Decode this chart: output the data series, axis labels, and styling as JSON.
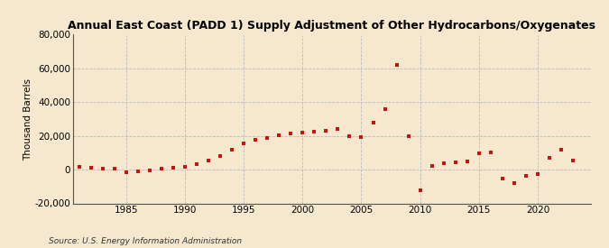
{
  "title": "Annual East Coast (PADD 1) Supply Adjustment of Other Hydrocarbons/Oxygenates",
  "ylabel": "Thousand Barrels",
  "source": "Source: U.S. Energy Information Administration",
  "background_color": "#f5e8ce",
  "marker_color": "#cc1111",
  "years": [
    1981,
    1982,
    1983,
    1984,
    1985,
    1986,
    1987,
    1988,
    1989,
    1990,
    1991,
    1992,
    1993,
    1994,
    1995,
    1996,
    1997,
    1998,
    1999,
    2000,
    2001,
    2002,
    2003,
    2004,
    2005,
    2006,
    2007,
    2008,
    2009,
    2010,
    2011,
    2012,
    2013,
    2014,
    2015,
    2016,
    2017,
    2018,
    2019,
    2020,
    2021,
    2022,
    2023
  ],
  "values": [
    1500,
    1200,
    800,
    500,
    -1800,
    -1200,
    -600,
    400,
    900,
    1800,
    3200,
    5500,
    8000,
    12000,
    15500,
    17500,
    19000,
    20500,
    21500,
    22000,
    22500,
    23000,
    24000,
    20000,
    19500,
    28000,
    36000,
    62000,
    20000,
    -12000,
    2000,
    4000,
    4500,
    5000,
    9500,
    10000,
    -5500,
    -8000,
    -3500,
    -2500,
    7000,
    12000,
    5500
  ],
  "ylim": [
    -20000,
    80000
  ],
  "yticks": [
    -20000,
    0,
    20000,
    40000,
    60000,
    80000
  ],
  "xticks": [
    1985,
    1990,
    1995,
    2000,
    2005,
    2010,
    2015,
    2020
  ],
  "xlim": [
    1980.5,
    2024.5
  ]
}
